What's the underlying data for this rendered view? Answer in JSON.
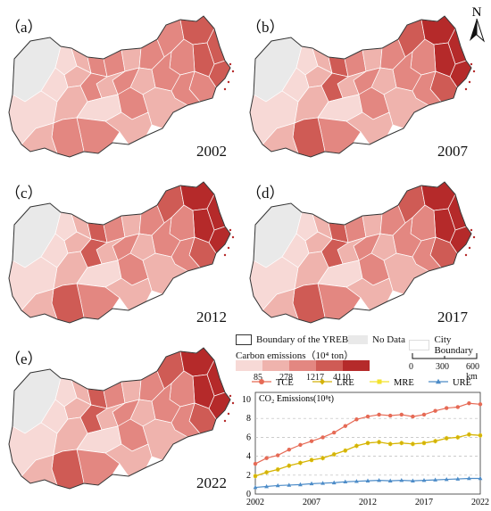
{
  "colors": {
    "no_data": "#e9e9e9",
    "c1": "#f7d9d6",
    "c2": "#efb3ad",
    "c3": "#e38781",
    "c4": "#cf5b55",
    "c5": "#b52a2a",
    "boundary": "#333333",
    "tce": "#e66a55",
    "lre": "#d4b20a",
    "mre": "#f2e22b",
    "ure": "#4d8cc8"
  },
  "north": {
    "letter": "N"
  },
  "panels": [
    {
      "label": "（a）",
      "year": "2002",
      "intensity": 0.35
    },
    {
      "label": "（b）",
      "year": "2007",
      "intensity": 0.5
    },
    {
      "label": "（c）",
      "year": "2012",
      "intensity": 0.72
    },
    {
      "label": "（d）",
      "year": "2017",
      "intensity": 0.7
    },
    {
      "label": "（e）",
      "year": "2022",
      "intensity": 0.75
    }
  ],
  "legend": {
    "boundary_label": "Boundary of the  YREB",
    "nodata_label": "No Data",
    "city_label": "City Boundary",
    "carbon_title": "Carbon emissions（10⁴ ton）",
    "breaks": [
      "85",
      "278",
      "1217",
      "4110"
    ],
    "scale_ticks": [
      "0",
      "300",
      "600 km"
    ]
  },
  "chart_data": {
    "type": "line",
    "title": "CO₂ Emissions(10⁸t)",
    "x": [
      2002,
      2003,
      2004,
      2005,
      2006,
      2007,
      2008,
      2009,
      2010,
      2011,
      2012,
      2013,
      2014,
      2015,
      2016,
      2017,
      2018,
      2019,
      2020,
      2021,
      2022
    ],
    "xticks": [
      "2002",
      "2007",
      "2012",
      "2017",
      "2022"
    ],
    "ylim": [
      0,
      10
    ],
    "yticks": [
      "0",
      "2",
      "4",
      "6",
      "8",
      "10"
    ],
    "grid": "horizontal dashed",
    "legend_position": "top",
    "series": [
      {
        "name": "TCE",
        "marker": "circle",
        "values": [
          3.2,
          3.8,
          4.1,
          4.7,
          5.2,
          5.6,
          6.0,
          6.5,
          7.2,
          7.9,
          8.2,
          8.4,
          8.3,
          8.4,
          8.2,
          8.4,
          8.8,
          9.1,
          9.2,
          9.6,
          9.5
        ]
      },
      {
        "name": "LRE",
        "marker": "diamond",
        "values": [
          1.9,
          2.3,
          2.6,
          3.0,
          3.3,
          3.6,
          3.8,
          4.2,
          4.6,
          5.1,
          5.4,
          5.5,
          5.3,
          5.4,
          5.3,
          5.4,
          5.6,
          5.9,
          6.0,
          6.3,
          6.2
        ]
      },
      {
        "name": "MRE",
        "marker": "square",
        "values": [
          1.9,
          2.3,
          2.6,
          3.0,
          3.3,
          3.6,
          3.8,
          4.2,
          4.6,
          5.1,
          5.4,
          5.5,
          5.3,
          5.4,
          5.3,
          5.4,
          5.6,
          5.9,
          6.0,
          6.3,
          6.2
        ]
      },
      {
        "name": "URE",
        "marker": "triangle",
        "values": [
          0.7,
          0.8,
          0.9,
          0.95,
          1.0,
          1.1,
          1.15,
          1.2,
          1.3,
          1.35,
          1.4,
          1.45,
          1.4,
          1.45,
          1.4,
          1.45,
          1.5,
          1.55,
          1.6,
          1.65,
          1.65
        ]
      }
    ]
  }
}
